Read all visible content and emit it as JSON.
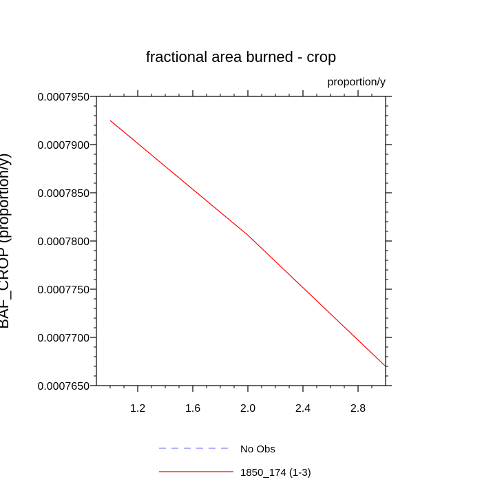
{
  "chart_data": {
    "type": "line",
    "title": "fractional area burned - crop",
    "units_label": "proportion/y",
    "ylabel": "BAF_CROP  (proportion/y)",
    "xlabel": "",
    "xlim": [
      0.9,
      3.0
    ],
    "ylim": [
      0.000765,
      0.000795
    ],
    "x_ticks": [
      1.2,
      1.6,
      2.0,
      2.4,
      2.8
    ],
    "x_tick_labels": [
      "1.2",
      "1.6",
      "2.0",
      "2.4",
      "2.8"
    ],
    "y_ticks": [
      0.000765,
      0.00077,
      0.000775,
      0.00078,
      0.000785,
      0.00079,
      0.000795
    ],
    "y_tick_labels": [
      "0.0007650",
      "0.0007700",
      "0.0007750",
      "0.0007800",
      "0.0007850",
      "0.0007900",
      "0.0007950"
    ],
    "grid": false,
    "series": [
      {
        "name": "No Obs",
        "x": [],
        "y": [],
        "color": "#8080ff",
        "dash": "dashed"
      },
      {
        "name": "1850_174 (1-3)",
        "x": [
          1,
          2,
          3
        ],
        "y": [
          0.0007925,
          0.0007806,
          0.000767
        ],
        "color": "#ff0000",
        "dash": "solid"
      }
    ],
    "legend": {
      "placement": "bottom-center",
      "entries": [
        {
          "label": "No Obs",
          "color": "#8080ff",
          "dash": "dashed"
        },
        {
          "label": "1850_174 (1-3)",
          "color": "#ff0000",
          "dash": "solid"
        }
      ]
    }
  }
}
